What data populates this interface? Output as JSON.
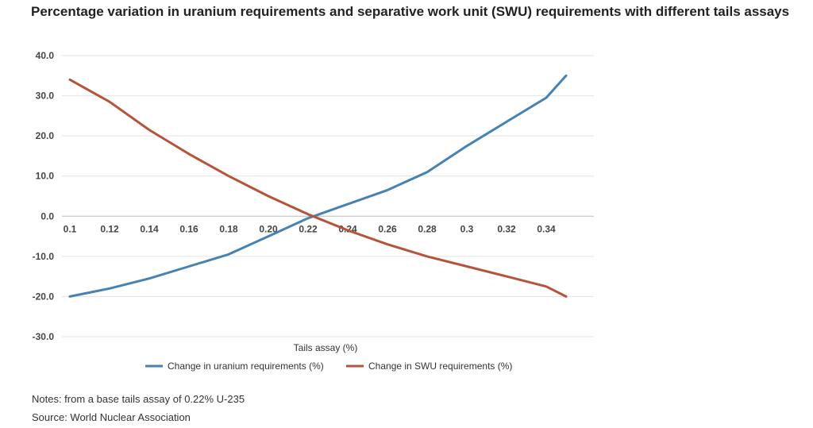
{
  "title": "Percentage variation in uranium requirements and separative work unit (SWU) requirements with different tails assays",
  "notes": "Notes: from a base tails assay of 0.22% U-235",
  "source": "Source: World Nuclear Association",
  "chart_data": {
    "type": "line",
    "xlabel": "Tails assay (%)",
    "ylabel": "",
    "xlim": [
      0.1,
      0.36
    ],
    "ylim": [
      -30,
      40
    ],
    "yticks": [
      40,
      30,
      20,
      10,
      0,
      -10,
      -20,
      -30
    ],
    "ytick_labels": [
      "40.0",
      "30.0",
      "20.0",
      "10.0",
      "0.0",
      "-10.0",
      "-20.0",
      "-30.0"
    ],
    "xticks": [
      0.1,
      0.12,
      0.14,
      0.16,
      0.18,
      0.2,
      0.22,
      0.24,
      0.26,
      0.28,
      0.3,
      0.32,
      0.34
    ],
    "xtick_labels": [
      "0.1",
      "0.12",
      "0.14",
      "0.16",
      "0.18",
      "0.20",
      "0.22",
      "0.24",
      "0.26",
      "0.28",
      "0.3",
      "0.32",
      "0.34"
    ],
    "grid": true,
    "legend_position": "bottom",
    "series": [
      {
        "name": "Change in uranium requirements (%)",
        "color": "#4682b4",
        "x": [
          0.1,
          0.12,
          0.14,
          0.16,
          0.18,
          0.2,
          0.22,
          0.24,
          0.26,
          0.28,
          0.3,
          0.32,
          0.34,
          0.35
        ],
        "values": [
          -20,
          -18,
          -15.5,
          -12.5,
          -9.5,
          -5,
          -0.5,
          3,
          6.5,
          11,
          17.5,
          23.5,
          29.5,
          35
        ]
      },
      {
        "name": "Change in SWU requirements (%)",
        "color": "#b5543a",
        "x": [
          0.1,
          0.12,
          0.14,
          0.16,
          0.18,
          0.2,
          0.22,
          0.24,
          0.26,
          0.28,
          0.3,
          0.32,
          0.34,
          0.35
        ],
        "values": [
          34,
          28.5,
          21.5,
          15.5,
          10,
          5,
          0.5,
          -3.5,
          -7,
          -10,
          -12.5,
          -15,
          -17.5,
          -20
        ]
      }
    ]
  }
}
